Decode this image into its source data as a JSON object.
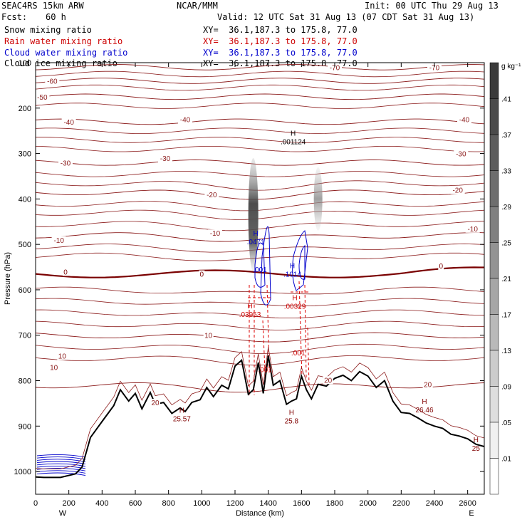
{
  "header": {
    "model": "SEAC4RS 15km ARW",
    "org": "NCAR/MMM",
    "init": "Init: 00 UTC Thu 29 Aug 13",
    "fcst_label": "Fcst:",
    "fcst_value": "60 h",
    "valid": "Valid: 12 UTC Sat 31 Aug 13 (07 CDT Sat 31 Aug 13)",
    "fields": [
      {
        "name": "Snow mixing ratio",
        "xy": "XY=  36.1,187.3 to 175.8, 77.0",
        "color": "#000000"
      },
      {
        "name": "Rain water mixing ratio",
        "xy": "XY=  36.1,187.3 to 175.8, 77.0",
        "color": "#cc0000"
      },
      {
        "name": "Cloud water mixing ratio",
        "xy": "XY=  36.1,187.3 to 175.8, 77.0",
        "color": "#0000cc"
      },
      {
        "name": "Cloud ice mixing ratio",
        "xy": "XY=  36.1,187.3 to 175.8, 77.0",
        "color": "#000000"
      }
    ]
  },
  "colorbar": {
    "unit": "g kg⁻¹",
    "levels": [
      ".41",
      ".37",
      ".33",
      ".29",
      ".25",
      ".21",
      ".17",
      ".13",
      ".09",
      ".05",
      ".01"
    ],
    "shades": [
      "#3a3a3a",
      "#4a4a4a",
      "#5c5c5c",
      "#6e6e6e",
      "#808080",
      "#939393",
      "#a6a6a6",
      "#b9b9b9",
      "#cccccc",
      "#dedede",
      "#f0f0f0",
      "#ffffff"
    ]
  },
  "chart_data": {
    "type": "cross-section",
    "xlabel": "Distance (km)",
    "ylabel": "Pressure (hPa)",
    "xlim": [
      0,
      2700
    ],
    "ylim": [
      1050,
      100
    ],
    "x_ticks": [
      "0",
      "200",
      "400",
      "600",
      "800",
      "1000",
      "1200",
      "1400",
      "1600",
      "1800",
      "2000",
      "2200",
      "2400",
      "2600"
    ],
    "y_ticks": [
      "100",
      "200",
      "300",
      "400",
      "500",
      "600",
      "700",
      "800",
      "900",
      "1000"
    ],
    "x_tick_values": [
      0,
      200,
      400,
      600,
      800,
      1000,
      1200,
      1400,
      1600,
      1800,
      2000,
      2200,
      2400,
      2600
    ],
    "y_tick_values": [
      100,
      200,
      300,
      400,
      500,
      600,
      700,
      800,
      900,
      1000
    ],
    "left_end": "W",
    "right_end": "E",
    "terrain": {
      "x": [
        0,
        50,
        150,
        240,
        280,
        330,
        400,
        470,
        510,
        560,
        600,
        640,
        690,
        720,
        770,
        820,
        870,
        900,
        940,
        990,
        1030,
        1070,
        1120,
        1160,
        1200,
        1240,
        1280,
        1310,
        1340,
        1370,
        1400,
        1430,
        1470,
        1510,
        1540,
        1570,
        1600,
        1630,
        1660,
        1700,
        1750,
        1800,
        1850,
        1900,
        1950,
        2000,
        2050,
        2100,
        2150,
        2200,
        2250,
        2300,
        2350,
        2400,
        2450,
        2500,
        2550,
        2600,
        2650,
        2700
      ],
      "p": [
        1012,
        1013,
        1013,
        1005,
        990,
        925,
        890,
        855,
        820,
        845,
        828,
        862,
        826,
        852,
        848,
        872,
        860,
        868,
        848,
        842,
        815,
        835,
        810,
        818,
        768,
        755,
        830,
        820,
        760,
        828,
        745,
        810,
        800,
        852,
        845,
        840,
        790,
        820,
        840,
        808,
        812,
        795,
        788,
        800,
        780,
        790,
        815,
        800,
        845,
        870,
        872,
        882,
        893,
        900,
        905,
        918,
        922,
        928,
        940,
        945
      ]
    },
    "isotherm_labels": [
      "-70",
      "-60",
      "-50",
      "-40",
      "-30",
      "-20",
      "-10",
      "0",
      "10",
      "20"
    ],
    "max_labels": [
      {
        "label": "H",
        "value": ".001124",
        "x": 1550,
        "p": 270,
        "color": "#000000"
      },
      {
        "label": "H",
        "value": ".0471",
        "x": 1325,
        "p": 490,
        "color": "#0000cc"
      },
      {
        "label": "H",
        "value": ".1014",
        "x": 1545,
        "p": 562,
        "color": "#0000cc"
      },
      {
        "label": "H",
        "value": ".03953",
        "x": 1290,
        "p": 650,
        "color": "#cc0000"
      },
      {
        "label": "H",
        "value": ".00329",
        "x": 1560,
        "p": 632,
        "color": "#cc0000"
      },
      {
        "label": "H",
        "value": "26.46",
        "x": 2340,
        "p": 860,
        "color": "#800000"
      },
      {
        "label": "H",
        "value": "25.57",
        "x": 880,
        "p": 880,
        "color": "#800000"
      },
      {
        "label": "H",
        "value": "25.8",
        "x": 1540,
        "p": 885,
        "color": "#800000"
      },
      {
        "label": "H",
        "value": "25",
        "x": 2650,
        "p": 945,
        "color": "#800000"
      }
    ],
    "min_labels": [
      {
        "value": ".001",
        "x": 1350,
        "p": 555,
        "color": "#0000cc"
      },
      {
        "value": ".001",
        "x": 1580,
        "p": 738,
        "color": "#cc0000"
      },
      {
        "value": ".001",
        "x": 1380,
        "p": 775,
        "color": "#cc0000"
      }
    ],
    "snow_columns": [
      {
        "x": 1310,
        "p_top": 310,
        "p_bottom": 560
      },
      {
        "x": 1700,
        "p_top": 330,
        "p_bottom": 470
      }
    ]
  }
}
